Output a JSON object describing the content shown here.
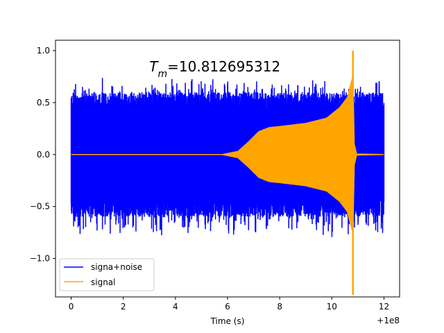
{
  "chart_data": {
    "type": "line",
    "title": "",
    "xlabel": "Time (s)",
    "ylabel": "",
    "x_offset_label": "+1e8",
    "xlim": [
      -0.6,
      12.6
    ],
    "ylim": [
      -1.37,
      1.1
    ],
    "xticks": [
      0,
      2,
      4,
      6,
      8,
      10,
      12
    ],
    "xtick_labels": [
      "0",
      "2",
      "4",
      "6",
      "8",
      "10",
      "12"
    ],
    "yticks": [
      -1.0,
      -0.5,
      0.0,
      0.5,
      1.0
    ],
    "ytick_labels": [
      "−1.0",
      "−0.5",
      "0.0",
      "0.5",
      "1.0"
    ],
    "grid": false,
    "legend": {
      "placement": "lower-left"
    },
    "annotation": {
      "symbol": "T",
      "subscript": "m",
      "text": "=10.812695312",
      "x": 3.0,
      "y": 0.8
    },
    "series": [
      {
        "name": "signa+noise",
        "color": "#0000ff",
        "kind": "noise-band",
        "x_range": [
          0,
          12
        ],
        "typical_amplitude": 0.5,
        "peak_max": 0.81,
        "peak_min": -1.0
      },
      {
        "name": "signal",
        "color": "#ffa500",
        "kind": "chirp-envelope",
        "envelope": [
          {
            "x": 0.0,
            "a": 0.0
          },
          {
            "x": 5.8,
            "a": 0.0
          },
          {
            "x": 6.4,
            "a": 0.03
          },
          {
            "x": 6.8,
            "a": 0.12
          },
          {
            "x": 7.2,
            "a": 0.22
          },
          {
            "x": 7.6,
            "a": 0.26
          },
          {
            "x": 8.0,
            "a": 0.27
          },
          {
            "x": 9.0,
            "a": 0.3
          },
          {
            "x": 9.8,
            "a": 0.35
          },
          {
            "x": 10.3,
            "a": 0.45
          },
          {
            "x": 10.6,
            "a": 0.55
          },
          {
            "x": 10.75,
            "a": 0.7
          },
          {
            "x": 10.81,
            "a": 0.75
          },
          {
            "x": 10.86,
            "a": 0.1
          },
          {
            "x": 10.95,
            "a": 0.005
          },
          {
            "x": 12.0,
            "a": 0.0
          }
        ],
        "spike": {
          "x": 10.81,
          "max": 1.0,
          "min": -1.35
        }
      }
    ]
  }
}
